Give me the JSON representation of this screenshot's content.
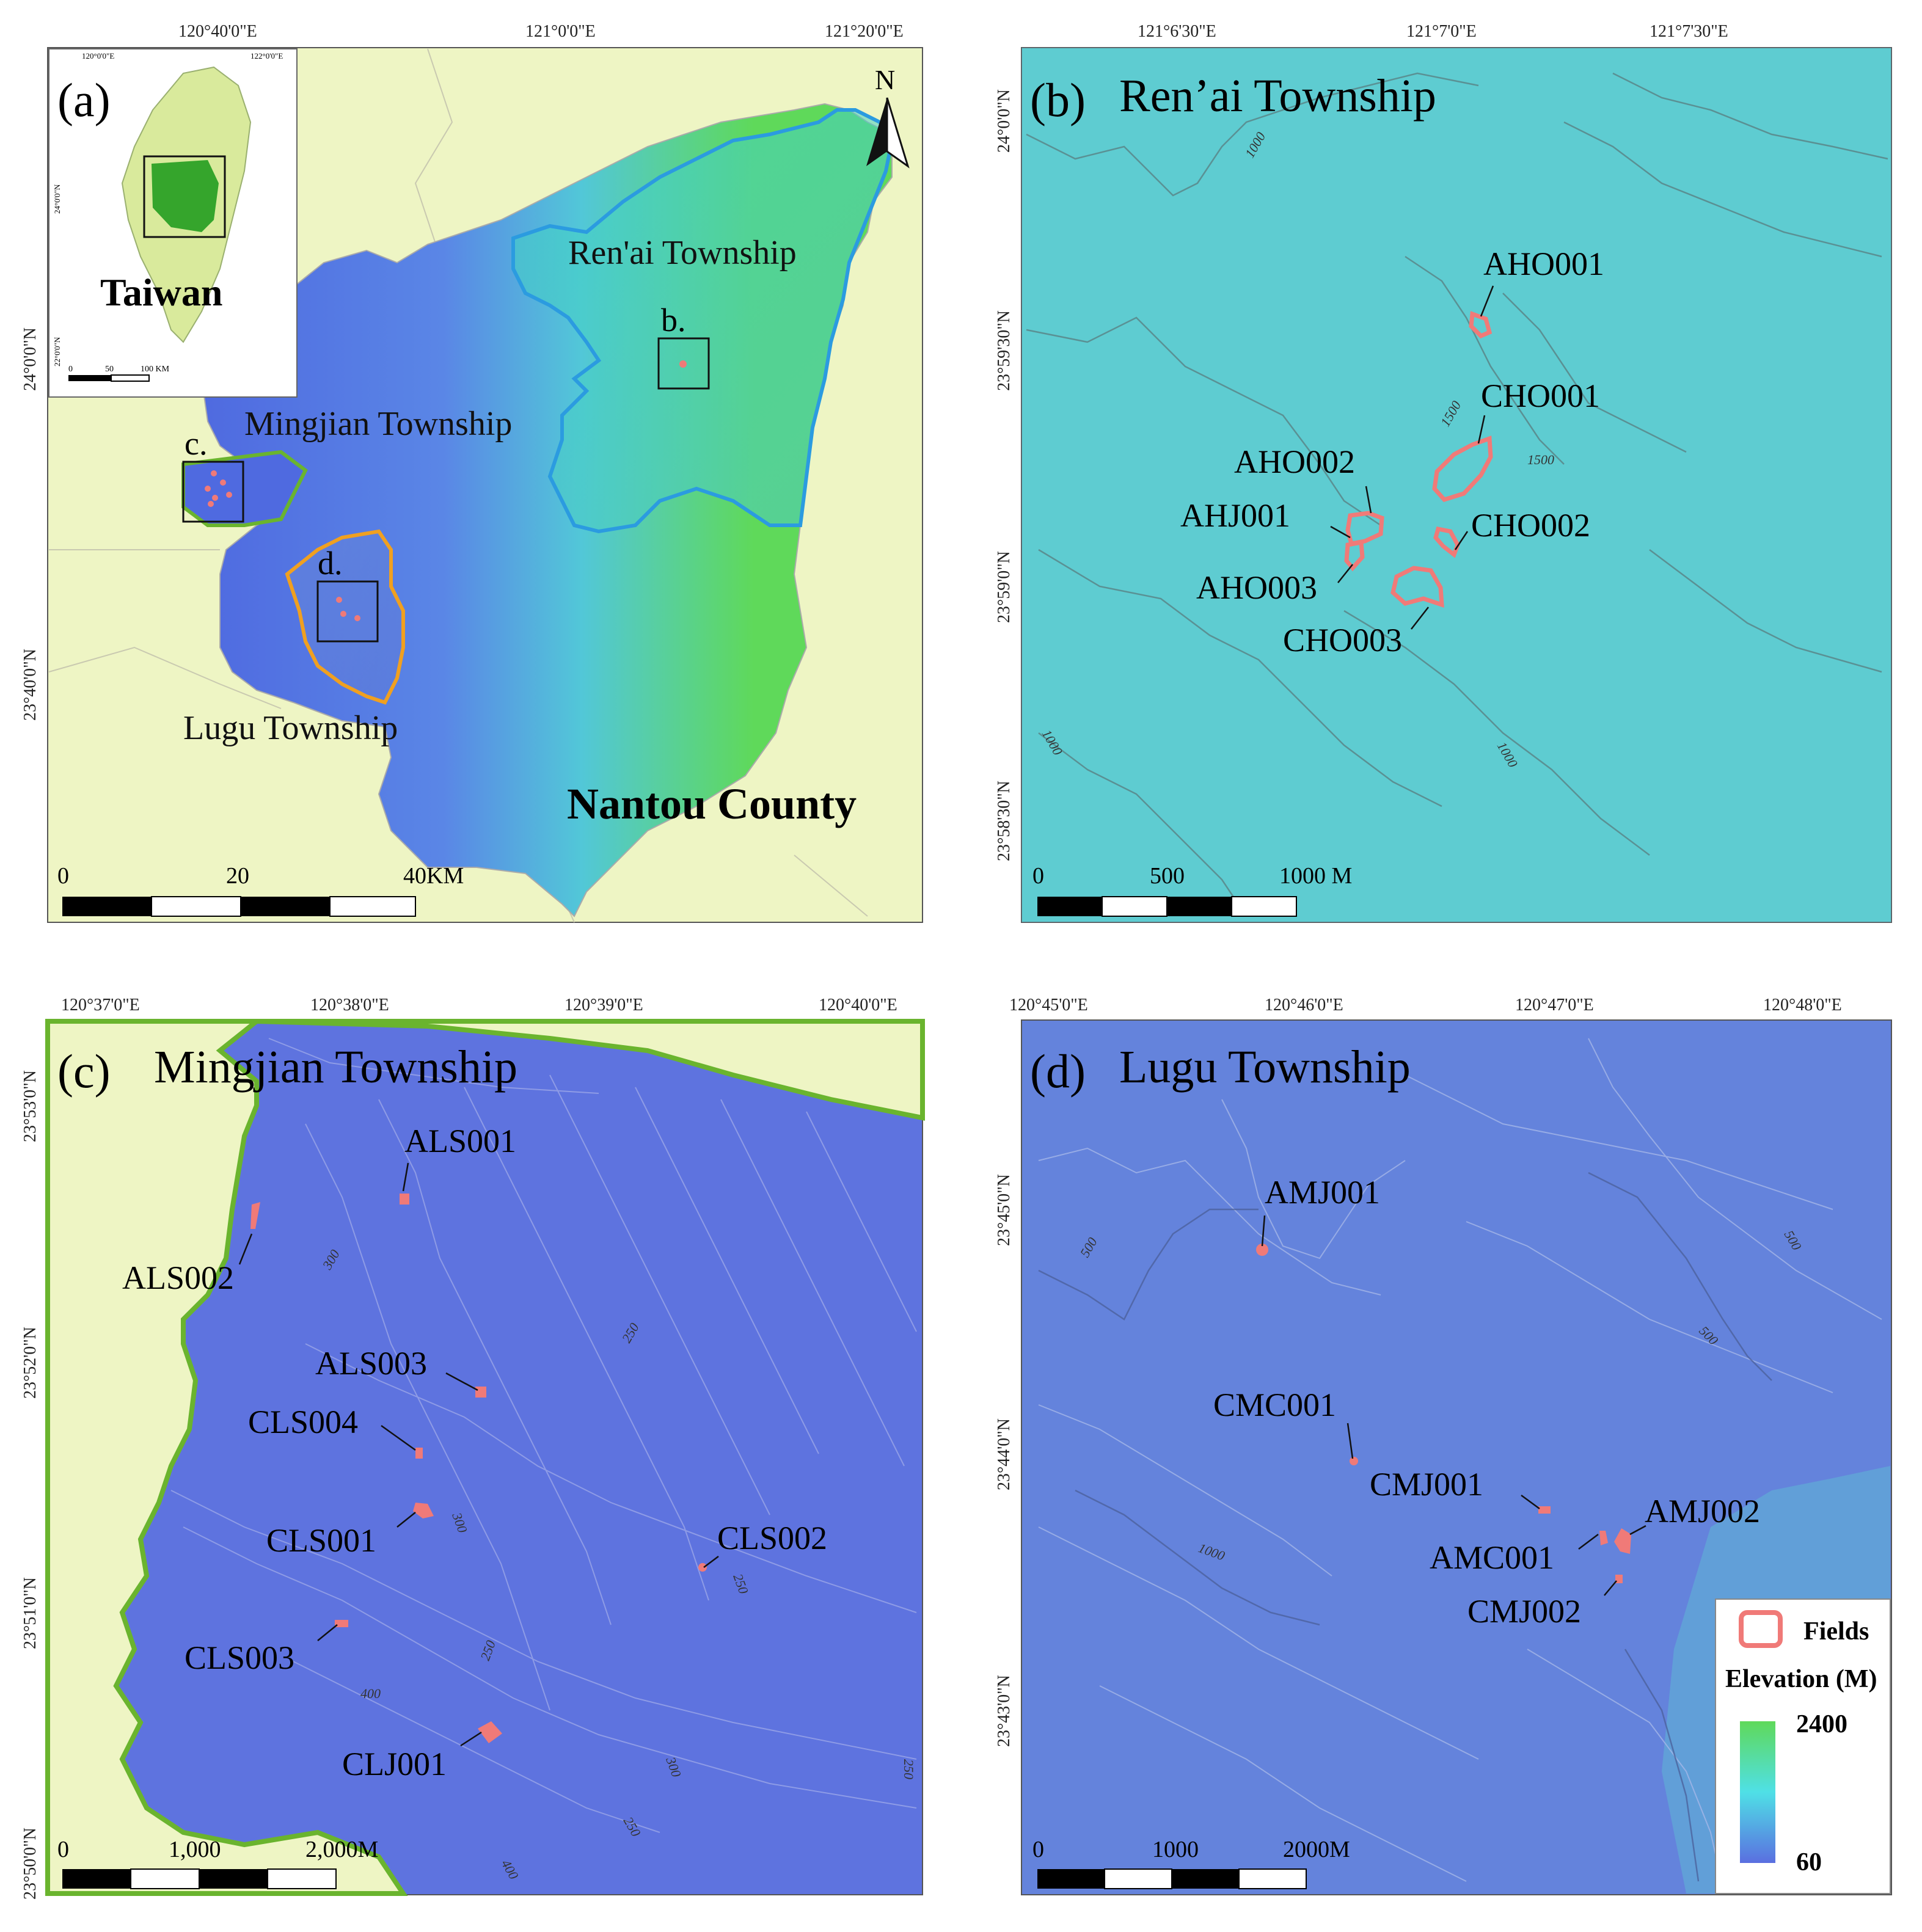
{
  "panels": {
    "a": {
      "label": "(a)",
      "lon_ticks": [
        "120°40'0\"E",
        "121°0'0\"E",
        "121°20'0\"E"
      ],
      "lat_ticks": [
        "24°0'0\"N",
        "23°40'0\"N"
      ],
      "inset": {
        "title": "Taiwan",
        "lon_ticks": [
          "120°0'0\"E",
          "122°0'0\"E"
        ],
        "lat_ticks": [
          "24°0'0\"N",
          "22°0'0\"N"
        ],
        "scale": [
          "0",
          "50",
          "100 KM"
        ]
      },
      "townships": [
        "Ren'ai Township",
        "Mingjian Township",
        "Lugu Township"
      ],
      "county": "Nantou County",
      "box_labels": [
        "b.",
        "c.",
        "d."
      ],
      "north": "N",
      "scale": [
        "0",
        "20",
        "40KM"
      ]
    },
    "b": {
      "label": "(b)",
      "title": "Ren’ai Township",
      "lon_ticks": [
        "121°6'30\"E",
        "121°7'0\"E",
        "121°7'30\"E"
      ],
      "lat_ticks": [
        "24°0'0\"N",
        "23°59'30\"N",
        "23°59'0\"N",
        "23°58'30\"N"
      ],
      "sites": [
        "AHO001",
        "CHO001",
        "AHO002",
        "AHJ001",
        "CHO002",
        "AHO003",
        "CHO003"
      ],
      "contours": [
        "1000",
        "1500",
        "1500",
        "1000",
        "1000"
      ],
      "scale": [
        "0",
        "500",
        "1000 M"
      ]
    },
    "c": {
      "label": "(c)",
      "title": "Mingjian Township",
      "lon_ticks": [
        "120°37'0\"E",
        "120°38'0\"E",
        "120°39'0\"E",
        "120°40'0\"E"
      ],
      "lat_ticks": [
        "23°53'0\"N",
        "23°52'0\"N",
        "23°51'0\"N",
        "23°50'0\"N"
      ],
      "sites": [
        "ALS001",
        "ALS002",
        "ALS003",
        "CLS004",
        "CLS001",
        "CLS002",
        "CLS003",
        "CLJ001"
      ],
      "contours": [
        "300",
        "250",
        "300",
        "250",
        "250",
        "400",
        "300",
        "250",
        "400",
        "250"
      ],
      "scale": [
        "0",
        "1,000",
        "2,000M"
      ]
    },
    "d": {
      "label": "(d)",
      "title": "Lugu Township",
      "lon_ticks": [
        "120°45'0\"E",
        "120°46'0\"E",
        "120°47'0\"E",
        "120°48'0\"E"
      ],
      "lat_ticks": [
        "23°45'0\"N",
        "23°44'0\"N",
        "23°43'0\"N"
      ],
      "sites": [
        "AMJ001",
        "CMC001",
        "CMJ001",
        "AMJ002",
        "AMC001",
        "CMJ002"
      ],
      "contours": [
        "500",
        "500",
        "500",
        "1000"
      ],
      "scale": [
        "0",
        "1000",
        "2000M"
      ]
    }
  },
  "legend": {
    "fields": "Fields",
    "elevation": "Elevation (M)",
    "max": "2400",
    "min": "60"
  },
  "colors": {
    "field": "#f07a78",
    "low_elev": "#5a6fe0",
    "high_elev": "#5fd95a",
    "background": "#eef5c4",
    "renai_border": "#2b9be0",
    "lugu_border": "#f0a020",
    "mingjian_border": "#6ab42e"
  }
}
